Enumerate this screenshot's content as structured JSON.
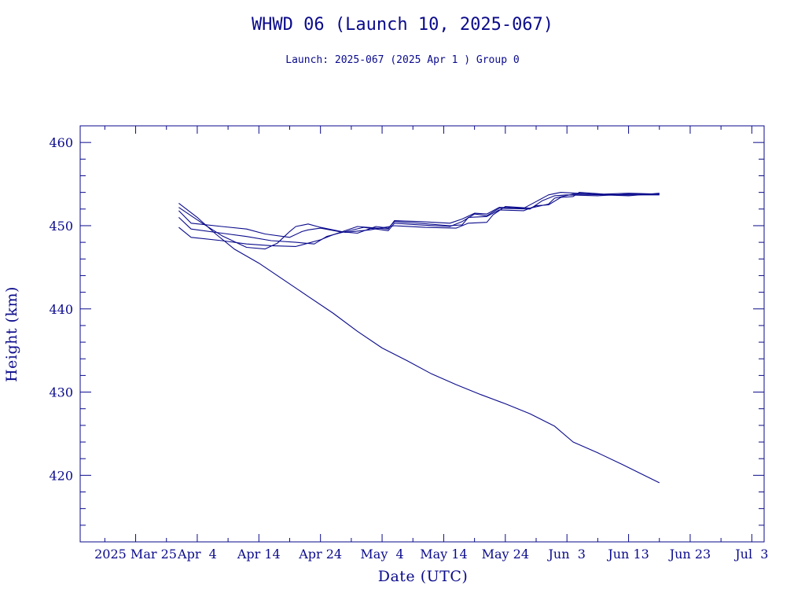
{
  "chart_data": {
    "type": "line",
    "title": "WHWD 06 (Launch 10, 2025-067)",
    "subtitle": "Launch: 2025-067  (2025 Apr  1 )  Group 0",
    "xlabel": "Date (UTC)",
    "ylabel": "Height (km)",
    "xlim": [
      "2025-03-16",
      "2025-07-05"
    ],
    "ylim": [
      412,
      462
    ],
    "x_ticks": [
      {
        "date": "2025-03-25",
        "label": "2025 Mar 25"
      },
      {
        "date": "2025-04-04",
        "label": "Apr  4"
      },
      {
        "date": "2025-04-14",
        "label": "Apr 14"
      },
      {
        "date": "2025-04-24",
        "label": "Apr 24"
      },
      {
        "date": "2025-05-04",
        "label": "May  4"
      },
      {
        "date": "2025-05-14",
        "label": "May 14"
      },
      {
        "date": "2025-05-24",
        "label": "May 24"
      },
      {
        "date": "2025-06-03",
        "label": "Jun  3"
      },
      {
        "date": "2025-06-13",
        "label": "Jun 13"
      },
      {
        "date": "2025-06-23",
        "label": "Jun 23"
      },
      {
        "date": "2025-07-03",
        "label": "Jul  3"
      }
    ],
    "y_ticks": [
      420,
      430,
      440,
      450,
      460
    ],
    "color": "#0a0a8c",
    "series": [
      {
        "points": [
          [
            "2025-04-01",
            452.7
          ],
          [
            "2025-04-04",
            451.0
          ],
          [
            "2025-04-07",
            449.0
          ],
          [
            "2025-04-10",
            447.2
          ],
          [
            "2025-04-14",
            445.5
          ],
          [
            "2025-04-18",
            443.5
          ],
          [
            "2025-04-22",
            441.5
          ],
          [
            "2025-04-26",
            439.5
          ],
          [
            "2025-04-30",
            437.3
          ],
          [
            "2025-05-04",
            435.3
          ],
          [
            "2025-05-08",
            433.8
          ],
          [
            "2025-05-12",
            432.2
          ],
          [
            "2025-05-16",
            430.9
          ],
          [
            "2025-05-20",
            429.7
          ],
          [
            "2025-05-24",
            428.6
          ],
          [
            "2025-05-28",
            427.4
          ],
          [
            "2025-06-01",
            425.9
          ],
          [
            "2025-06-04",
            424.0
          ],
          [
            "2025-06-08",
            422.7
          ],
          [
            "2025-06-12",
            421.3
          ],
          [
            "2025-06-15",
            420.2
          ],
          [
            "2025-06-18",
            419.1
          ]
        ]
      },
      {
        "points": [
          [
            "2025-04-01",
            451.8
          ],
          [
            "2025-04-03",
            450.3
          ],
          [
            "2025-04-08",
            449.9
          ],
          [
            "2025-04-12",
            449.6
          ],
          [
            "2025-04-15",
            449.0
          ],
          [
            "2025-04-19",
            448.6
          ],
          [
            "2025-04-21",
            449.3
          ],
          [
            "2025-04-22",
            449.5
          ],
          [
            "2025-04-24",
            449.7
          ],
          [
            "2025-04-27",
            449.3
          ],
          [
            "2025-04-30",
            449.1
          ],
          [
            "2025-05-03",
            449.9
          ],
          [
            "2025-05-05",
            449.7
          ],
          [
            "2025-05-06",
            450.5
          ],
          [
            "2025-05-10",
            450.3
          ],
          [
            "2025-05-15",
            450.0
          ],
          [
            "2025-05-17",
            450.1
          ],
          [
            "2025-05-18",
            451.0
          ],
          [
            "2025-05-21",
            451.1
          ],
          [
            "2025-05-23",
            451.9
          ],
          [
            "2025-05-27",
            451.8
          ],
          [
            "2025-05-29",
            452.4
          ],
          [
            "2025-05-31",
            452.5
          ],
          [
            "2025-06-02",
            453.4
          ],
          [
            "2025-06-04",
            453.5
          ],
          [
            "2025-06-05",
            454.0
          ],
          [
            "2025-06-09",
            453.8
          ],
          [
            "2025-06-13",
            453.9
          ],
          [
            "2025-06-18",
            453.8
          ]
        ]
      },
      {
        "points": [
          [
            "2025-04-01",
            451.0
          ],
          [
            "2025-04-03",
            449.6
          ],
          [
            "2025-04-08",
            449.1
          ],
          [
            "2025-04-12",
            448.7
          ],
          [
            "2025-04-16",
            448.2
          ],
          [
            "2025-04-20",
            448.0
          ],
          [
            "2025-04-23",
            447.8
          ],
          [
            "2025-04-25",
            448.7
          ],
          [
            "2025-04-27",
            449.1
          ],
          [
            "2025-05-01",
            449.8
          ],
          [
            "2025-05-05",
            449.4
          ],
          [
            "2025-05-06",
            450.3
          ],
          [
            "2025-05-10",
            450.1
          ],
          [
            "2025-05-15",
            449.9
          ],
          [
            "2025-05-17",
            450.5
          ],
          [
            "2025-05-19",
            451.4
          ],
          [
            "2025-05-21",
            451.2
          ],
          [
            "2025-05-23",
            452.1
          ],
          [
            "2025-05-28",
            452.0
          ],
          [
            "2025-05-30",
            453.0
          ],
          [
            "2025-06-01",
            453.6
          ],
          [
            "2025-06-03",
            453.7
          ],
          [
            "2025-06-08",
            453.6
          ],
          [
            "2025-06-13",
            453.8
          ],
          [
            "2025-06-18",
            453.8
          ]
        ]
      },
      {
        "points": [
          [
            "2025-04-01",
            449.8
          ],
          [
            "2025-04-03",
            448.6
          ],
          [
            "2025-04-08",
            448.2
          ],
          [
            "2025-04-12",
            447.8
          ],
          [
            "2025-04-16",
            447.6
          ],
          [
            "2025-04-20",
            447.5
          ],
          [
            "2025-04-22",
            447.9
          ],
          [
            "2025-04-24",
            448.3
          ],
          [
            "2025-04-26",
            448.9
          ],
          [
            "2025-04-30",
            449.9
          ],
          [
            "2025-05-05",
            449.6
          ],
          [
            "2025-05-06",
            450.6
          ],
          [
            "2025-05-10",
            450.5
          ],
          [
            "2025-05-15",
            450.3
          ],
          [
            "2025-05-17",
            450.8
          ],
          [
            "2025-05-19",
            451.5
          ],
          [
            "2025-05-21",
            451.4
          ],
          [
            "2025-05-23",
            452.2
          ],
          [
            "2025-05-27",
            452.1
          ],
          [
            "2025-05-29",
            452.9
          ],
          [
            "2025-05-31",
            453.7
          ],
          [
            "2025-06-02",
            454.0
          ],
          [
            "2025-06-07",
            453.8
          ],
          [
            "2025-06-12",
            453.7
          ],
          [
            "2025-06-18",
            453.7
          ]
        ]
      },
      {
        "points": [
          [
            "2025-04-01",
            452.2
          ],
          [
            "2025-04-03",
            451.2
          ],
          [
            "2025-04-05",
            450.2
          ],
          [
            "2025-04-08",
            448.8
          ],
          [
            "2025-04-12",
            447.4
          ],
          [
            "2025-04-15",
            447.2
          ],
          [
            "2025-04-17",
            447.9
          ],
          [
            "2025-04-18",
            448.6
          ],
          [
            "2025-04-19",
            449.3
          ],
          [
            "2025-04-20",
            449.9
          ],
          [
            "2025-04-22",
            450.2
          ],
          [
            "2025-04-24",
            449.8
          ],
          [
            "2025-04-28",
            449.2
          ],
          [
            "2025-05-02",
            449.5
          ],
          [
            "2025-05-06",
            450.0
          ],
          [
            "2025-05-11",
            449.8
          ],
          [
            "2025-05-16",
            449.7
          ],
          [
            "2025-05-18",
            450.3
          ],
          [
            "2025-05-21",
            450.4
          ],
          [
            "2025-05-22",
            451.3
          ],
          [
            "2025-05-24",
            452.3
          ],
          [
            "2025-05-28",
            452.1
          ],
          [
            "2025-05-31",
            452.6
          ],
          [
            "2025-06-01",
            453.3
          ],
          [
            "2025-06-04",
            453.8
          ],
          [
            "2025-06-09",
            453.7
          ],
          [
            "2025-06-13",
            453.6
          ],
          [
            "2025-06-18",
            453.9
          ]
        ]
      }
    ]
  }
}
